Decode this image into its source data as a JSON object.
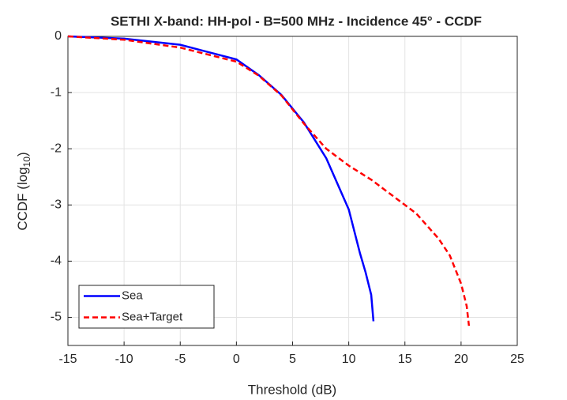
{
  "chart_data": {
    "type": "line",
    "title": "SETHI X-band: HH-pol - B=500 MHz - Incidence 45° - CCDF",
    "xlabel": "Threshold (dB)",
    "ylabel": {
      "text": "CCDF (log",
      "subscript": "10",
      "suffix": ")"
    },
    "xlim": [
      -15,
      25
    ],
    "ylim": [
      -5.5,
      0
    ],
    "xticks": [
      -15,
      -10,
      -5,
      0,
      5,
      10,
      15,
      20,
      25
    ],
    "yticks": [
      -5,
      -4,
      -3,
      -2,
      -1,
      0
    ],
    "grid": true,
    "legend": "lower left",
    "series": [
      {
        "name": "Sea",
        "color": "#0000ff",
        "dash": "solid",
        "x": [
          -15,
          -10,
          -5,
          0,
          2,
          4,
          6,
          8,
          10,
          11,
          11.5,
          12,
          12.2
        ],
        "values": [
          0,
          -0.04,
          -0.15,
          -0.41,
          -0.69,
          -1.04,
          -1.53,
          -2.17,
          -3.08,
          -3.86,
          -4.2,
          -4.6,
          -5.07
        ]
      },
      {
        "name": "Sea+Target",
        "color": "#ff0000",
        "dash": "dashed",
        "x": [
          -15,
          -10,
          -5,
          0,
          2,
          4,
          6,
          8,
          10,
          12,
          14,
          16,
          18,
          19,
          20,
          20.5,
          20.7
        ],
        "values": [
          0,
          -0.06,
          -0.2,
          -0.45,
          -0.7,
          -1.05,
          -1.55,
          -2.0,
          -2.3,
          -2.55,
          -2.85,
          -3.15,
          -3.6,
          -3.9,
          -4.4,
          -4.8,
          -5.15
        ]
      }
    ]
  }
}
